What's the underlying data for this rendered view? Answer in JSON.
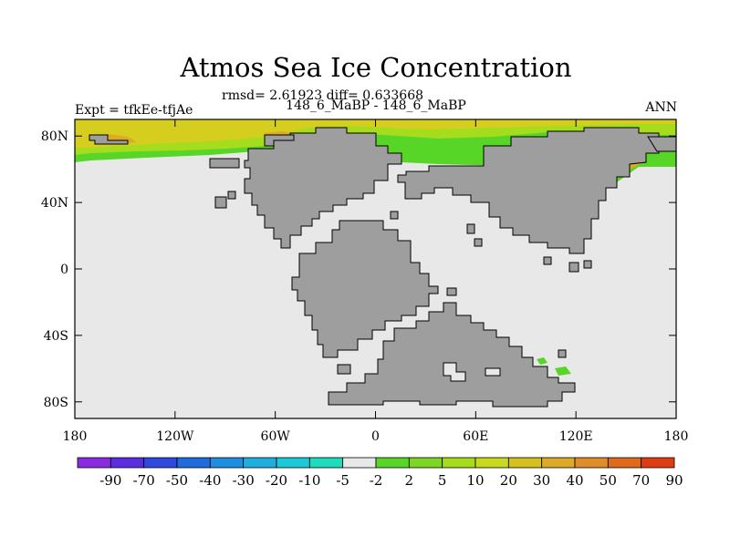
{
  "header": {
    "title": "Atmos Sea Ice Concentration",
    "stats": "rmsd= 2.61923 diff= 0.633668",
    "expt": "Expt = tfkEe-tfjAe",
    "cases": "148_6_MaBP - 148_6_MaBP",
    "season": "ANN"
  },
  "map": {
    "lon_range": [
      -180,
      180
    ],
    "lat_range": [
      -90,
      90
    ],
    "lon_ticks": [
      {
        "value": -180,
        "label": "180"
      },
      {
        "value": -120,
        "label": "120W"
      },
      {
        "value": -60,
        "label": "60W"
      },
      {
        "value": 0,
        "label": "0"
      },
      {
        "value": 60,
        "label": "60E"
      },
      {
        "value": 120,
        "label": "120E"
      },
      {
        "value": 180,
        "label": "180"
      }
    ],
    "lat_ticks": [
      {
        "value": 80,
        "label": "80N"
      },
      {
        "value": 40,
        "label": "40N"
      },
      {
        "value": 0,
        "label": "0"
      },
      {
        "value": -40,
        "label": "40S"
      },
      {
        "value": -80,
        "label": "80S"
      }
    ],
    "colors": {
      "ocean": "#e8e8e8",
      "land": "#9e9e9e",
      "coast": "#000000",
      "ice_green": "#58d628",
      "ice_lime": "#a6dc1e",
      "ice_yellow": "#d6ce1e",
      "ice_orange": "#dcaa28"
    }
  },
  "colorbar": {
    "levels": [
      "-90",
      "-70",
      "-50",
      "-40",
      "-30",
      "-20",
      "-10",
      "-5",
      "-2",
      "2",
      "5",
      "10",
      "20",
      "30",
      "40",
      "50",
      "70",
      "90"
    ],
    "colors": [
      "#8a2be2",
      "#5a2ee0",
      "#2f48e0",
      "#1f6cde",
      "#1e8ee0",
      "#1eaee0",
      "#1ec8d6",
      "#1edcbc",
      "#e8e8e8",
      "#58d628",
      "#7ed624",
      "#a6dc1e",
      "#c8da1e",
      "#d6c01e",
      "#dcaa28",
      "#e08c28",
      "#e06a1c",
      "#e03c14"
    ]
  }
}
